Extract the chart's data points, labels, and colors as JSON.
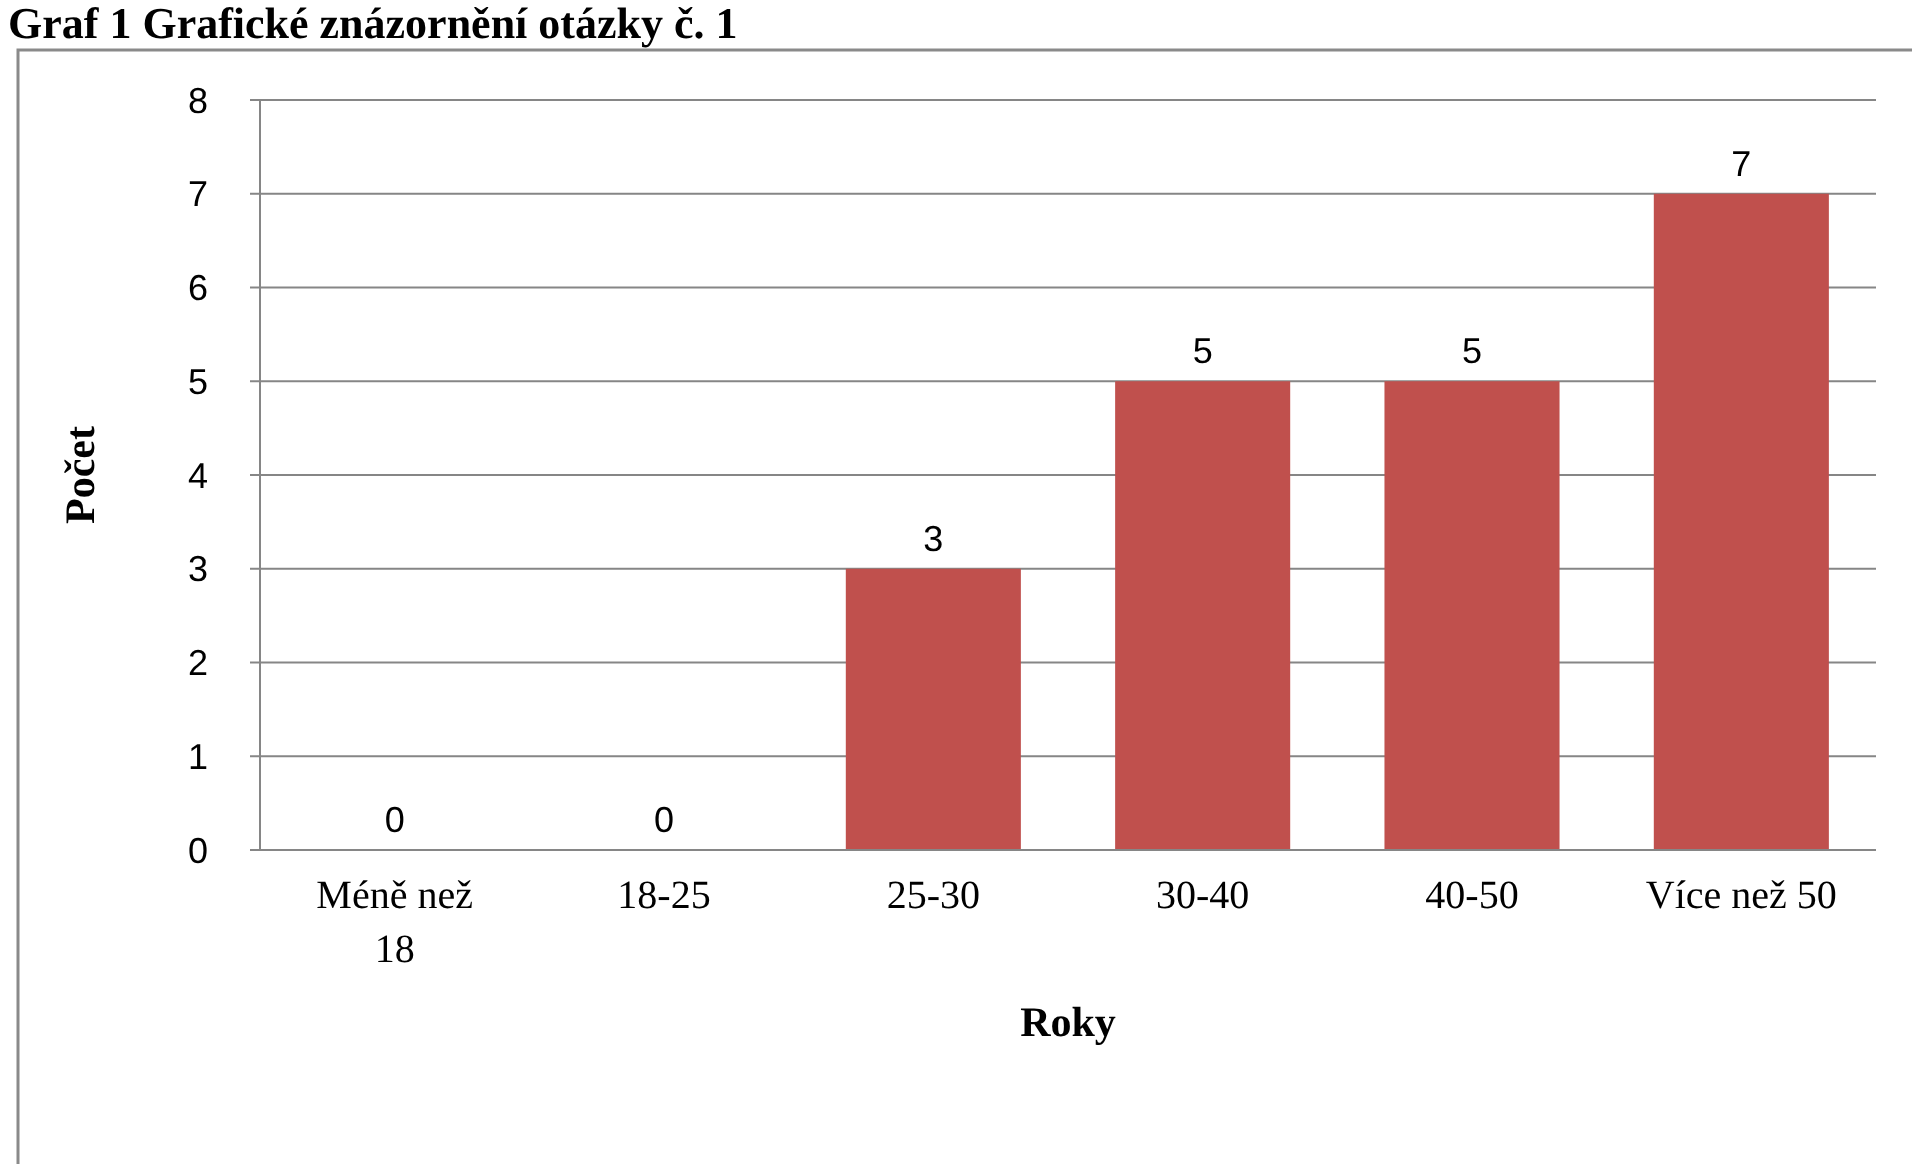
{
  "chart_data": {
    "type": "bar",
    "title": "Graf 1 Grafické znázornění otázky č. 1",
    "xlabel": "Roky",
    "ylabel": "Počet",
    "categories": [
      "Méně než\n18",
      "18-25",
      "25-30",
      "30-40",
      "40-50",
      "Více než 50"
    ],
    "values": [
      0,
      0,
      3,
      5,
      5,
      7
    ],
    "color": "#c0504d",
    "ylim": [
      0,
      8
    ],
    "yticks": [
      0,
      1,
      2,
      3,
      4,
      5,
      6,
      7,
      8
    ],
    "grid": "y",
    "data_labels": true
  }
}
